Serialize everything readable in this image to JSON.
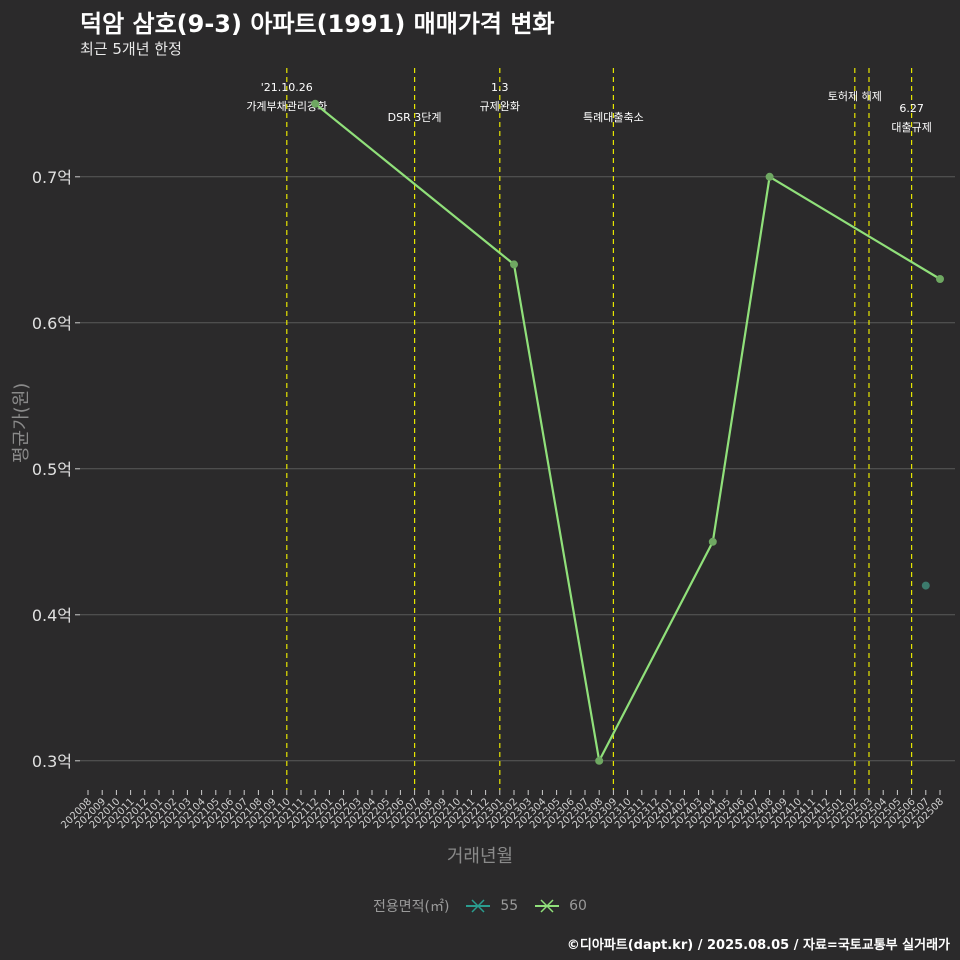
{
  "title": "덕암 삼호(9-3) 아파트(1991) 매매가격 변화",
  "subtitle": "최근 5개년 한정",
  "caption": "©디아파트(dapt.kr) / 2025.08.05 / 자료=국토교통부 실거래가",
  "legend": {
    "title": "전용면적(㎡)",
    "items": [
      {
        "label": "55",
        "color": "#2a9d8f"
      },
      {
        "label": "60",
        "color": "#90e07a"
      }
    ]
  },
  "colors": {
    "background": "#2b2a2b",
    "grid": "#5a5a5a",
    "event_line": "#e6e600",
    "series_55": "#2a9d8f",
    "series_60": "#90e07a"
  },
  "chart_data": {
    "type": "line",
    "xlabel": "거래년월",
    "ylabel": "평균가(원)",
    "ylim": [
      0.28,
      0.78
    ],
    "yticks": [
      0.3,
      0.4,
      0.5,
      0.6,
      0.7
    ],
    "ytick_labels": [
      "0.3억",
      "0.4억",
      "0.5억",
      "0.6억",
      "0.7억"
    ],
    "grid": true,
    "x_categories": [
      "202008",
      "202009",
      "202010",
      "202011",
      "202012",
      "202101",
      "202102",
      "202103",
      "202104",
      "202105",
      "202106",
      "202107",
      "202108",
      "202109",
      "202110",
      "202111",
      "202112",
      "202201",
      "202202",
      "202203",
      "202204",
      "202205",
      "202206",
      "202207",
      "202208",
      "202209",
      "202210",
      "202211",
      "202212",
      "202301",
      "202302",
      "202303",
      "202304",
      "202305",
      "202306",
      "202307",
      "202308",
      "202309",
      "202310",
      "202311",
      "202312",
      "202401",
      "202402",
      "202403",
      "202404",
      "202405",
      "202406",
      "202407",
      "202408",
      "202409",
      "202410",
      "202411",
      "202412",
      "202501",
      "202502",
      "202503",
      "202504",
      "202505",
      "202506",
      "202507",
      "202508"
    ],
    "series": [
      {
        "name": "55",
        "points": [
          {
            "x": "202507",
            "y": 0.42
          }
        ]
      },
      {
        "name": "60",
        "points": [
          {
            "x": "202112",
            "y": 0.75
          },
          {
            "x": "202302",
            "y": 0.64
          },
          {
            "x": "202308",
            "y": 0.3
          },
          {
            "x": "202404",
            "y": 0.45
          },
          {
            "x": "202408",
            "y": 0.7
          },
          {
            "x": "202508",
            "y": 0.63
          }
        ]
      }
    ],
    "events": [
      {
        "x": "202110",
        "label_lines": [
          "'21.10.26",
          "가계부채관리강화"
        ],
        "row": 0
      },
      {
        "x": "202207",
        "label_lines": [
          "DSR 3단계"
        ],
        "row": 2
      },
      {
        "x": "202301",
        "label_lines": [
          "1.3",
          "규제완화"
        ],
        "row": 0
      },
      {
        "x": "202309",
        "label_lines": [
          "특례대출축소"
        ],
        "row": 2
      },
      {
        "x": "202502",
        "label_lines": [
          "토허제 해제"
        ],
        "row": 1
      },
      {
        "x": "202503",
        "label_lines": [],
        "row": 1
      },
      {
        "x": "202506",
        "label_lines": [
          "6.27",
          "대출규제"
        ],
        "row": 2
      }
    ]
  }
}
